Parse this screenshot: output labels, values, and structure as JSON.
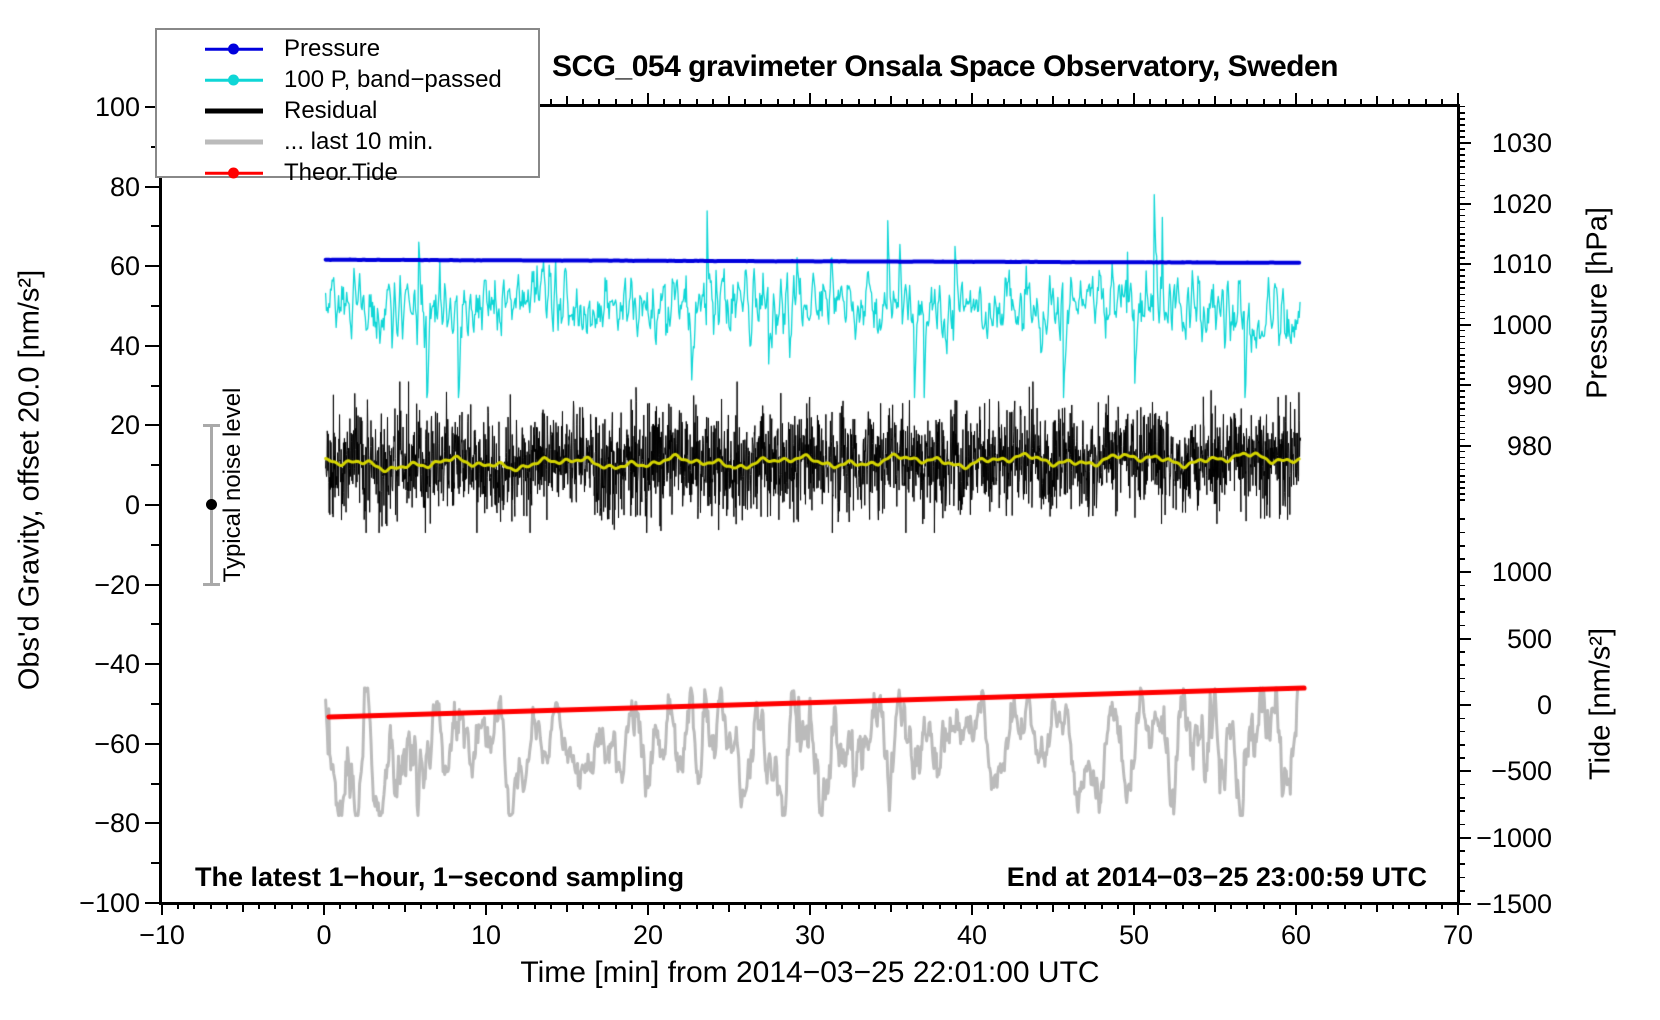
{
  "title": "SCG_054 gravimeter Onsala Space Observatory, Sweden",
  "legend": {
    "items": [
      {
        "id": "pressure",
        "label": "Pressure",
        "color": "#0000dd",
        "style": "thin-dot"
      },
      {
        "id": "band-passed",
        "label": "100 P, band−passed",
        "color": "#0fd6d6",
        "style": "thin-dot"
      },
      {
        "id": "residual",
        "label": "Residual",
        "color": "#000000",
        "style": "thick"
      },
      {
        "id": "last-10-min",
        "label": "... last 10 min.",
        "color": "#bbbbbb",
        "style": "thick"
      },
      {
        "id": "theor-tide",
        "label": "Theor.Tide",
        "color": "#ff0000",
        "style": "thin-dot"
      }
    ]
  },
  "axes": {
    "x": {
      "title": "Time [min] from 2014−03−25 22:01:00 UTC",
      "min": -10,
      "max": 70,
      "minor_step": 1,
      "medium_step": 5,
      "major_tick_values": [
        -10,
        0,
        10,
        20,
        30,
        40,
        50,
        60,
        70
      ],
      "major_tick_labels": [
        "−10",
        "0",
        "10",
        "20",
        "30",
        "40",
        "50",
        "60",
        "70"
      ]
    },
    "gravity": {
      "title": "Obs'd Gravity, offset 20.0 [nm/s²]",
      "min": -100,
      "max": 100,
      "minor_step": 10,
      "major_tick_values": [
        100,
        80,
        60,
        40,
        20,
        0,
        -20,
        -40,
        -60,
        -80,
        -100
      ],
      "major_tick_labels": [
        "100",
        "80",
        "60",
        "40",
        "20",
        "0",
        "−20",
        "−40",
        "−60",
        "−80",
        "−100"
      ]
    },
    "pressure": {
      "title": "Pressure [hPa]",
      "minor_step": 1,
      "minor_range": [
        971,
        1036
      ],
      "major_tick_values": [
        1030,
        1020,
        1010,
        1000,
        990,
        980
      ],
      "major_tick_labels": [
        "1030",
        "1020",
        "1010",
        "1000",
        "990",
        "980"
      ]
    },
    "tide": {
      "title": "Tide [nm/s²]",
      "minor_step": 100,
      "minor_range": [
        -1400,
        1400
      ],
      "major_tick_values": [
        1000,
        500,
        0,
        -500,
        -1000,
        -1500
      ],
      "major_tick_labels": [
        "1000",
        "500",
        "0",
        "−500",
        "−1000",
        "−1500"
      ]
    }
  },
  "annotations": {
    "sampling": "The latest 1−hour, 1−second sampling",
    "end_time": "End at 2014−03−25 23:00:59 UTC",
    "noise_label": "Typical noise level"
  },
  "noise_bar": {
    "x_minutes": -6.9,
    "center_value": 0,
    "half_range": 20
  },
  "chart_data": {
    "type": "line",
    "title": "SCG_054 gravimeter Onsala Space Observatory, Sweden",
    "xlabel": "Time [min] from 2014−03−25 22:01:00 UTC",
    "x_minutes_range": [
      0,
      60.3
    ],
    "sampling": "1-second",
    "legend_position": "top-left",
    "grid": false,
    "series": [
      {
        "name": "100 P, band−passed",
        "axis": "gravity",
        "color": "#0fd6d6",
        "linewidth": 1.3,
        "mean": 50,
        "typ_amplitude": 7,
        "min": 27,
        "max": 78
      },
      {
        "name": "Pressure",
        "axis": "pressure",
        "color": "#0000dd",
        "linewidth": 4,
        "start_hPa": 1010.7,
        "end_hPa": 1010.2,
        "jitter_hPa": 0.05
      },
      {
        "name": "Residual",
        "axis": "gravity",
        "color": "#000000",
        "linewidth": 1,
        "mean_start": 10.1,
        "mean_end": 11.6,
        "std": 6.6,
        "clip": [
          -7,
          31
        ]
      },
      {
        "name": "Residual smoothed",
        "axis": "gravity",
        "color": "#d4d400",
        "linewidth": 3,
        "mean_start": 10.1,
        "mean_end": 11.6,
        "wiggle": 0.9
      },
      {
        "name": "... last 10 min.",
        "axis": "gravity",
        "color": "#bbbbbb",
        "linewidth": 3,
        "mean": -61,
        "typ_amplitude": 9,
        "clip": [
          -78,
          -46
        ]
      },
      {
        "name": "Theor.Tide",
        "axis": "tide",
        "color": "#ff0000",
        "linewidth": 5,
        "start_nms2": -90,
        "end_nms2": 128
      }
    ]
  }
}
